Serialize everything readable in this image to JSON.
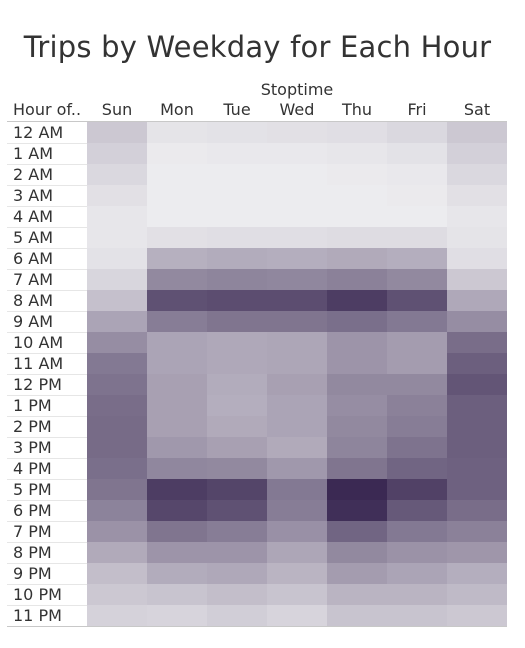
{
  "chart_data": {
    "type": "heatmap",
    "title": "Trips by Weekday for Each Hour",
    "column_field": "Stoptime",
    "row_field": "Hour of..",
    "columns": [
      "Sun",
      "Mon",
      "Tue",
      "Wed",
      "Thu",
      "Fri",
      "Sat"
    ],
    "rows": [
      "12 AM",
      "1 AM",
      "2 AM",
      "3 AM",
      "4 AM",
      "5 AM",
      "6 AM",
      "7 AM",
      "8 AM",
      "9 AM",
      "10 AM",
      "11 AM",
      "12 PM",
      "1 PM",
      "2 PM",
      "3 PM",
      "4 PM",
      "5 PM",
      "6 PM",
      "7 PM",
      "8 PM",
      "9 PM",
      "10 PM",
      "11 PM"
    ],
    "values": [
      [
        0.2,
        0.06,
        0.07,
        0.08,
        0.09,
        0.12,
        0.2
      ],
      [
        0.16,
        0.03,
        0.04,
        0.04,
        0.05,
        0.07,
        0.16
      ],
      [
        0.12,
        0.02,
        0.02,
        0.02,
        0.03,
        0.04,
        0.12
      ],
      [
        0.08,
        0.02,
        0.02,
        0.02,
        0.02,
        0.03,
        0.08
      ],
      [
        0.05,
        0.02,
        0.02,
        0.02,
        0.02,
        0.02,
        0.05
      ],
      [
        0.05,
        0.08,
        0.09,
        0.09,
        0.1,
        0.1,
        0.06
      ],
      [
        0.07,
        0.32,
        0.34,
        0.33,
        0.35,
        0.33,
        0.09
      ],
      [
        0.13,
        0.52,
        0.54,
        0.53,
        0.56,
        0.52,
        0.2
      ],
      [
        0.24,
        0.8,
        0.82,
        0.82,
        0.9,
        0.8,
        0.36
      ],
      [
        0.38,
        0.58,
        0.62,
        0.62,
        0.65,
        0.6,
        0.5
      ],
      [
        0.5,
        0.38,
        0.36,
        0.37,
        0.46,
        0.42,
        0.66
      ],
      [
        0.6,
        0.38,
        0.36,
        0.37,
        0.46,
        0.42,
        0.73
      ],
      [
        0.63,
        0.4,
        0.34,
        0.4,
        0.52,
        0.52,
        0.78
      ],
      [
        0.66,
        0.4,
        0.33,
        0.38,
        0.5,
        0.56,
        0.73
      ],
      [
        0.67,
        0.4,
        0.35,
        0.38,
        0.52,
        0.58,
        0.73
      ],
      [
        0.67,
        0.44,
        0.4,
        0.35,
        0.54,
        0.63,
        0.73
      ],
      [
        0.65,
        0.53,
        0.52,
        0.44,
        0.62,
        0.7,
        0.72
      ],
      [
        0.62,
        0.9,
        0.86,
        0.6,
        1.0,
        0.88,
        0.72
      ],
      [
        0.55,
        0.85,
        0.8,
        0.58,
        0.97,
        0.76,
        0.66
      ],
      [
        0.47,
        0.62,
        0.58,
        0.48,
        0.7,
        0.6,
        0.56
      ],
      [
        0.35,
        0.46,
        0.46,
        0.37,
        0.52,
        0.47,
        0.45
      ],
      [
        0.25,
        0.34,
        0.36,
        0.3,
        0.42,
        0.38,
        0.33
      ],
      [
        0.2,
        0.22,
        0.25,
        0.22,
        0.3,
        0.3,
        0.27
      ],
      [
        0.15,
        0.14,
        0.17,
        0.14,
        0.22,
        0.22,
        0.2
      ]
    ],
    "color_scale": {
      "low": "#f0f0f2",
      "high": "#3b2953"
    },
    "legend": "none",
    "grid": false
  }
}
